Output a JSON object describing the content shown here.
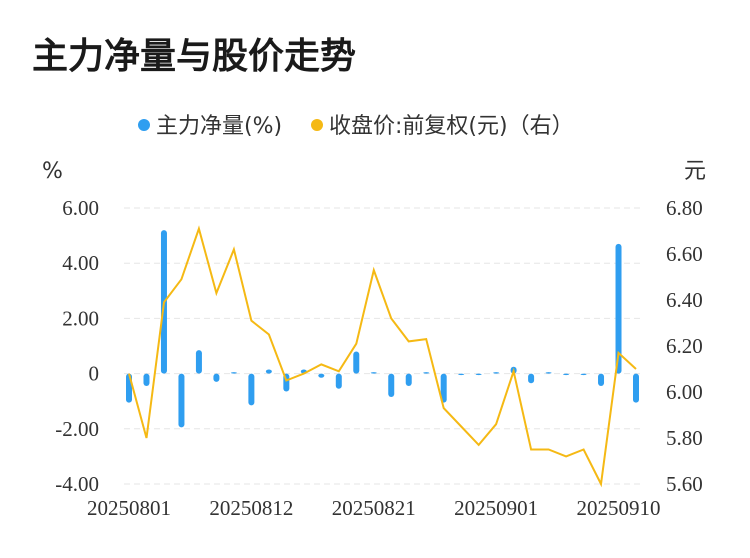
{
  "title": "主力净量与股价走势",
  "colors": {
    "bar": "#2f9ef0",
    "line": "#f5b914"
  },
  "chart_data": {
    "type": "bar",
    "series": [
      {
        "name": "主力净量(%)",
        "type": "bar",
        "axis": "left",
        "values": [
          -1.05,
          -0.45,
          5.2,
          -1.95,
          0.85,
          -0.3,
          0.05,
          -1.15,
          0.15,
          -0.65,
          0.15,
          -0.15,
          -0.55,
          0.8,
          0.05,
          -0.85,
          -0.45,
          0.02,
          -1.05,
          -0.05,
          -0.05,
          0.02,
          0.25,
          -0.35,
          0.02,
          -0.02,
          -0.02,
          -0.45,
          4.7,
          -1.05
        ]
      },
      {
        "name": "收盘价:前复权(元)（右）",
        "type": "line",
        "axis": "right",
        "values": [
          6.08,
          5.8,
          6.39,
          6.49,
          6.71,
          6.43,
          6.62,
          6.31,
          6.25,
          6.05,
          6.08,
          6.12,
          6.09,
          6.21,
          6.53,
          6.32,
          6.22,
          6.23,
          5.93,
          5.85,
          5.77,
          5.86,
          6.09,
          5.75,
          5.75,
          5.72,
          5.75,
          5.6,
          6.17,
          6.1
        ]
      }
    ],
    "x_ticks": [
      "20250801",
      "20250812",
      "20250821",
      "20250901",
      "20250910"
    ],
    "y_left": {
      "unit": "%",
      "ticks": [
        "6.00",
        "4.00",
        "2.00",
        "0",
        "-2.00",
        "-4.00"
      ],
      "range": [
        -4,
        6
      ]
    },
    "y_right": {
      "unit": "元",
      "ticks": [
        "6.80",
        "6.60",
        "6.40",
        "6.20",
        "6.00",
        "5.80",
        "5.60"
      ],
      "range": [
        5.6,
        6.8
      ]
    },
    "grid": true,
    "legend_position": "top-center"
  }
}
